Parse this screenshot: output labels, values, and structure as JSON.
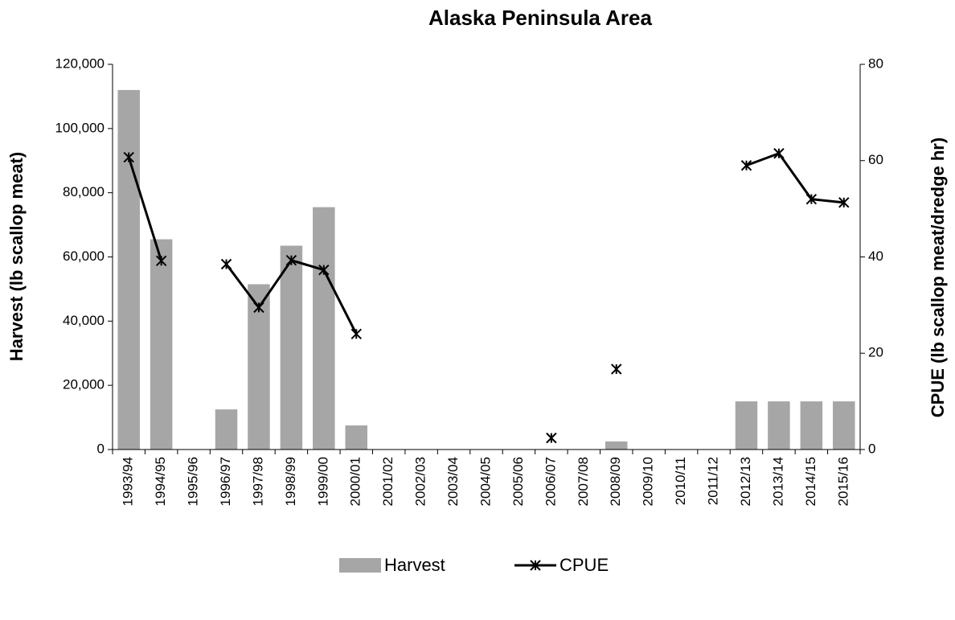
{
  "chart_data": {
    "type": "bar_line",
    "title": "Alaska Peninsula Area",
    "categories": [
      "1993/94",
      "1994/95",
      "1995/96",
      "1996/97",
      "1997/98",
      "1998/99",
      "1999/00",
      "2000/01",
      "2001/02",
      "2002/03",
      "2003/04",
      "2004/05",
      "2005/06",
      "2006/07",
      "2007/08",
      "2008/09",
      "2009/10",
      "2010/11",
      "2011/12",
      "2012/13",
      "2013/14",
      "2014/15",
      "2015/16"
    ],
    "series": [
      {
        "name": "Harvest",
        "type": "bar",
        "color": "#a6a6a6",
        "values": [
          112000,
          65500,
          null,
          12500,
          51500,
          63500,
          75500,
          7500,
          null,
          null,
          null,
          null,
          null,
          null,
          null,
          2500,
          null,
          null,
          null,
          15000,
          15000,
          15000,
          15000
        ]
      },
      {
        "name": "CPUE",
        "type": "line",
        "axis": "y2",
        "color": "#000000",
        "values": [
          60.7,
          39.2,
          null,
          38.5,
          29.5,
          39.3,
          37.3,
          24,
          null,
          null,
          null,
          null,
          null,
          2.4,
          null,
          16.7,
          null,
          null,
          null,
          59,
          61.5,
          52,
          51.3
        ]
      }
    ],
    "ylabel": "Harvest (lb scallop meat)",
    "y2label": "CPUE (lb scallop meat/dredge hr)",
    "ylim": [
      0,
      120000
    ],
    "yticks": [
      0,
      {
        "value": 20000,
        "label": "20,000"
      },
      {
        "value": 40000,
        "label": "40,000"
      },
      {
        "value": 60000,
        "label": "60,000"
      },
      {
        "value": 80000,
        "label": "80,000"
      },
      {
        "value": 100000,
        "label": "100,000"
      },
      {
        "value": 120000,
        "label": "120,000"
      }
    ],
    "y2lim": [
      0,
      80
    ],
    "y2ticks": [
      0,
      20,
      40,
      60,
      80
    ],
    "legend": "bottom"
  }
}
